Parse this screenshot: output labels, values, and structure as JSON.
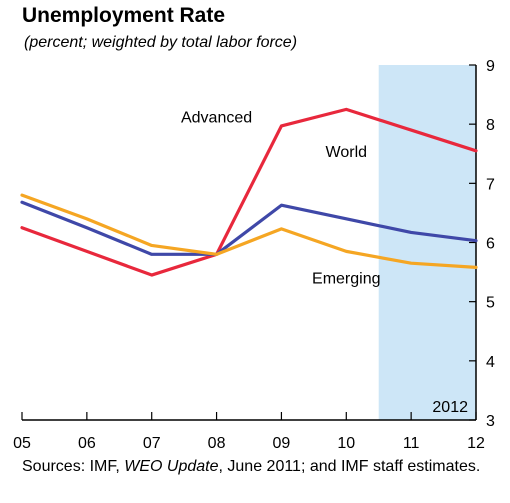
{
  "chart_data": {
    "type": "line",
    "title": "Unemployment Rate",
    "subtitle": "(percent; weighted by total labor force)",
    "x": [
      "05",
      "06",
      "07",
      "08",
      "09",
      "10",
      "11",
      "12"
    ],
    "ylim": [
      3,
      9
    ],
    "yticks": [
      3,
      4,
      5,
      6,
      7,
      8,
      9
    ],
    "series": [
      {
        "name": "Advanced",
        "color": "#e8283c",
        "values": [
          6.25,
          5.85,
          5.45,
          5.8,
          7.97,
          8.25,
          7.9,
          7.55
        ]
      },
      {
        "name": "World",
        "color": "#3f48a8",
        "values": [
          6.68,
          6.25,
          5.8,
          5.8,
          6.63,
          6.4,
          6.17,
          6.03
        ]
      },
      {
        "name": "Emerging",
        "color": "#f5a623",
        "values": [
          6.8,
          6.4,
          5.95,
          5.8,
          6.23,
          5.85,
          5.65,
          5.58
        ]
      }
    ],
    "shaded_region": {
      "label": "2012",
      "color": "#cde6f7"
    }
  },
  "source": {
    "prefix": "Sources: IMF, ",
    "italic": "WEO Update",
    "suffix": ", June 2011; and IMF staff estimates."
  }
}
